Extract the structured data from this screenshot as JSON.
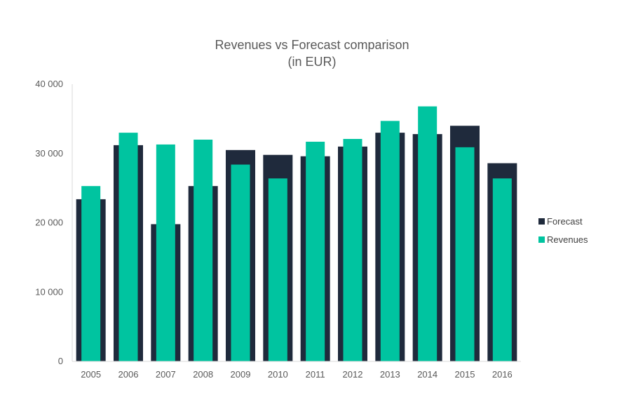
{
  "chart_data": {
    "type": "bar",
    "title": "Revenues vs Forecast comparison",
    "subtitle": "(in EUR)",
    "xlabel": "",
    "ylabel": "",
    "categories": [
      "2005",
      "2006",
      "2007",
      "2008",
      "2009",
      "2010",
      "2011",
      "2012",
      "2013",
      "2014",
      "2015",
      "2016"
    ],
    "series": [
      {
        "name": "Forecast",
        "color": "#1f2a3c",
        "values": [
          23400,
          31200,
          19800,
          25300,
          30500,
          29800,
          29600,
          31000,
          33000,
          32800,
          34000,
          28600
        ]
      },
      {
        "name": "Revenues",
        "color": "#00c4a0",
        "values": [
          25300,
          33000,
          31300,
          32000,
          28400,
          26400,
          31700,
          32100,
          34700,
          36800,
          30900,
          26400
        ]
      }
    ],
    "ylim": [
      0,
      40000
    ],
    "yticks": [
      0,
      10000,
      20000,
      30000,
      40000
    ],
    "ytick_labels": [
      "0",
      "10 000",
      "20 000",
      "30 000",
      "40 000"
    ],
    "grid": false,
    "legend_position": "right",
    "bars": "overlapped"
  }
}
